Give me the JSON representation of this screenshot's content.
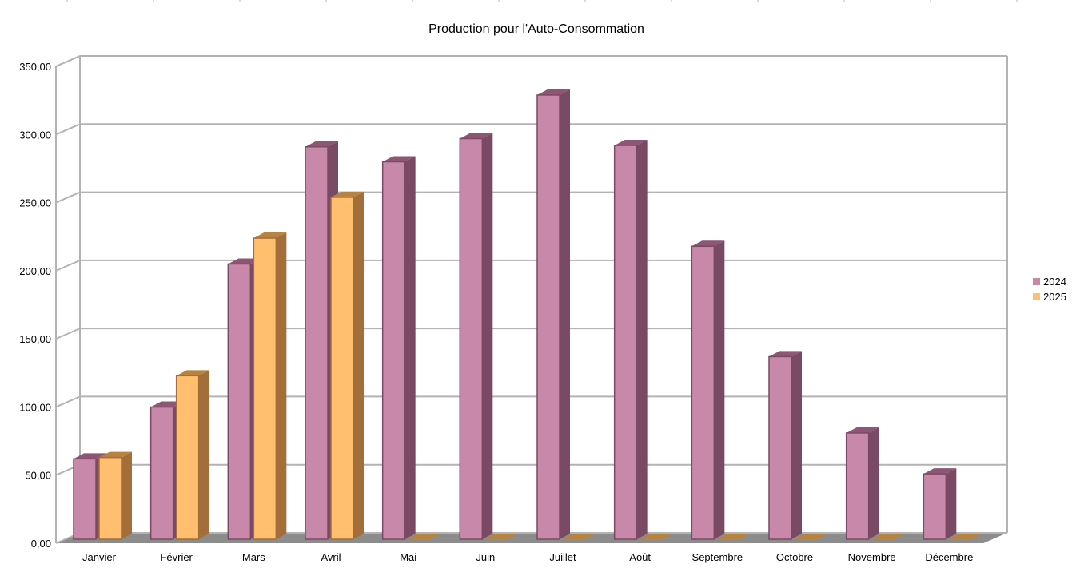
{
  "chart_data": {
    "type": "bar",
    "title": "Production pour l'Auto-Consommation",
    "xlabel": "",
    "ylabel": "",
    "categories": [
      "Janvier",
      "Février",
      "Mars",
      "Avril",
      "Mai",
      "Juin",
      "Juillet",
      "Août",
      "Septembre",
      "Octobre",
      "Novembre",
      "Décembre"
    ],
    "series": [
      {
        "name": "2024",
        "values": [
          59,
          97,
          202,
          288,
          277,
          294,
          326,
          289,
          215,
          134,
          78,
          48
        ],
        "color": "#c888aa",
        "side_color": "#7a4a64",
        "top_color": "#8e5674"
      },
      {
        "name": "2025",
        "values": [
          60,
          120,
          221,
          251,
          0,
          0,
          0,
          0,
          0,
          0,
          0,
          0
        ],
        "color": "#ffbf6e",
        "side_color": "#a36e3a",
        "top_color": "#b8823f"
      }
    ],
    "ylim": [
      0,
      350
    ],
    "yticks": [
      "0,00",
      "50,00",
      "100,00",
      "150,00",
      "200,00",
      "250,00",
      "300,00",
      "350,00"
    ],
    "ytick_values": [
      0,
      50,
      100,
      150,
      200,
      250,
      300,
      350
    ],
    "grid": true,
    "legend": "right"
  }
}
